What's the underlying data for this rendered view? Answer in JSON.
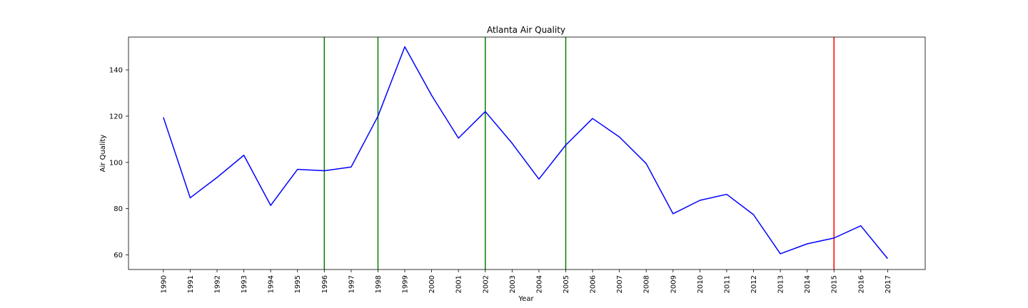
{
  "chart_data": {
    "type": "line",
    "title": "Atlanta Air Quality",
    "xlabel": "Year",
    "ylabel": "Air Quality",
    "x": [
      1990,
      1991,
      1992,
      1993,
      1994,
      1995,
      1996,
      1997,
      1998,
      1999,
      2000,
      2001,
      2002,
      2003,
      2004,
      2005,
      2006,
      2007,
      2008,
      2009,
      2010,
      2011,
      2012,
      2013,
      2014,
      2015,
      2016,
      2017
    ],
    "x_tick_labels": [
      "1990",
      "1991",
      "1992",
      "1993",
      "1994",
      "1995",
      "1996",
      "1997",
      "1998",
      "1999",
      "2000",
      "2001",
      "2002",
      "2003",
      "2004",
      "2005",
      "2006",
      "2007",
      "2008",
      "2009",
      "2010",
      "2011",
      "2012",
      "2013",
      "2014",
      "2015",
      "2016",
      "2017"
    ],
    "series": [
      {
        "color": "#0000ff",
        "values": [
          119.5,
          84.7,
          93.5,
          103.1,
          81.4,
          97.0,
          96.4,
          98.0,
          120.0,
          150.0,
          129.0,
          110.5,
          122.0,
          108.3,
          92.8,
          107.5,
          119.0,
          111.0,
          99.5,
          77.8,
          83.6,
          86.2,
          77.4,
          60.5,
          64.8,
          67.3,
          72.6,
          58.4
        ]
      }
    ],
    "vertical_lines": [
      {
        "x": 1996,
        "color": "#008000"
      },
      {
        "x": 1998,
        "color": "#008000"
      },
      {
        "x": 2002,
        "color": "#008000"
      },
      {
        "x": 2005,
        "color": "#008000"
      },
      {
        "x": 2015,
        "color": "#ff0000"
      }
    ],
    "y_ticks": [
      60,
      80,
      100,
      120,
      140
    ],
    "xlim": [
      1988.7,
      2018.4
    ],
    "ylim": [
      53.7,
      154.2
    ],
    "grid": false,
    "legend": "none"
  }
}
